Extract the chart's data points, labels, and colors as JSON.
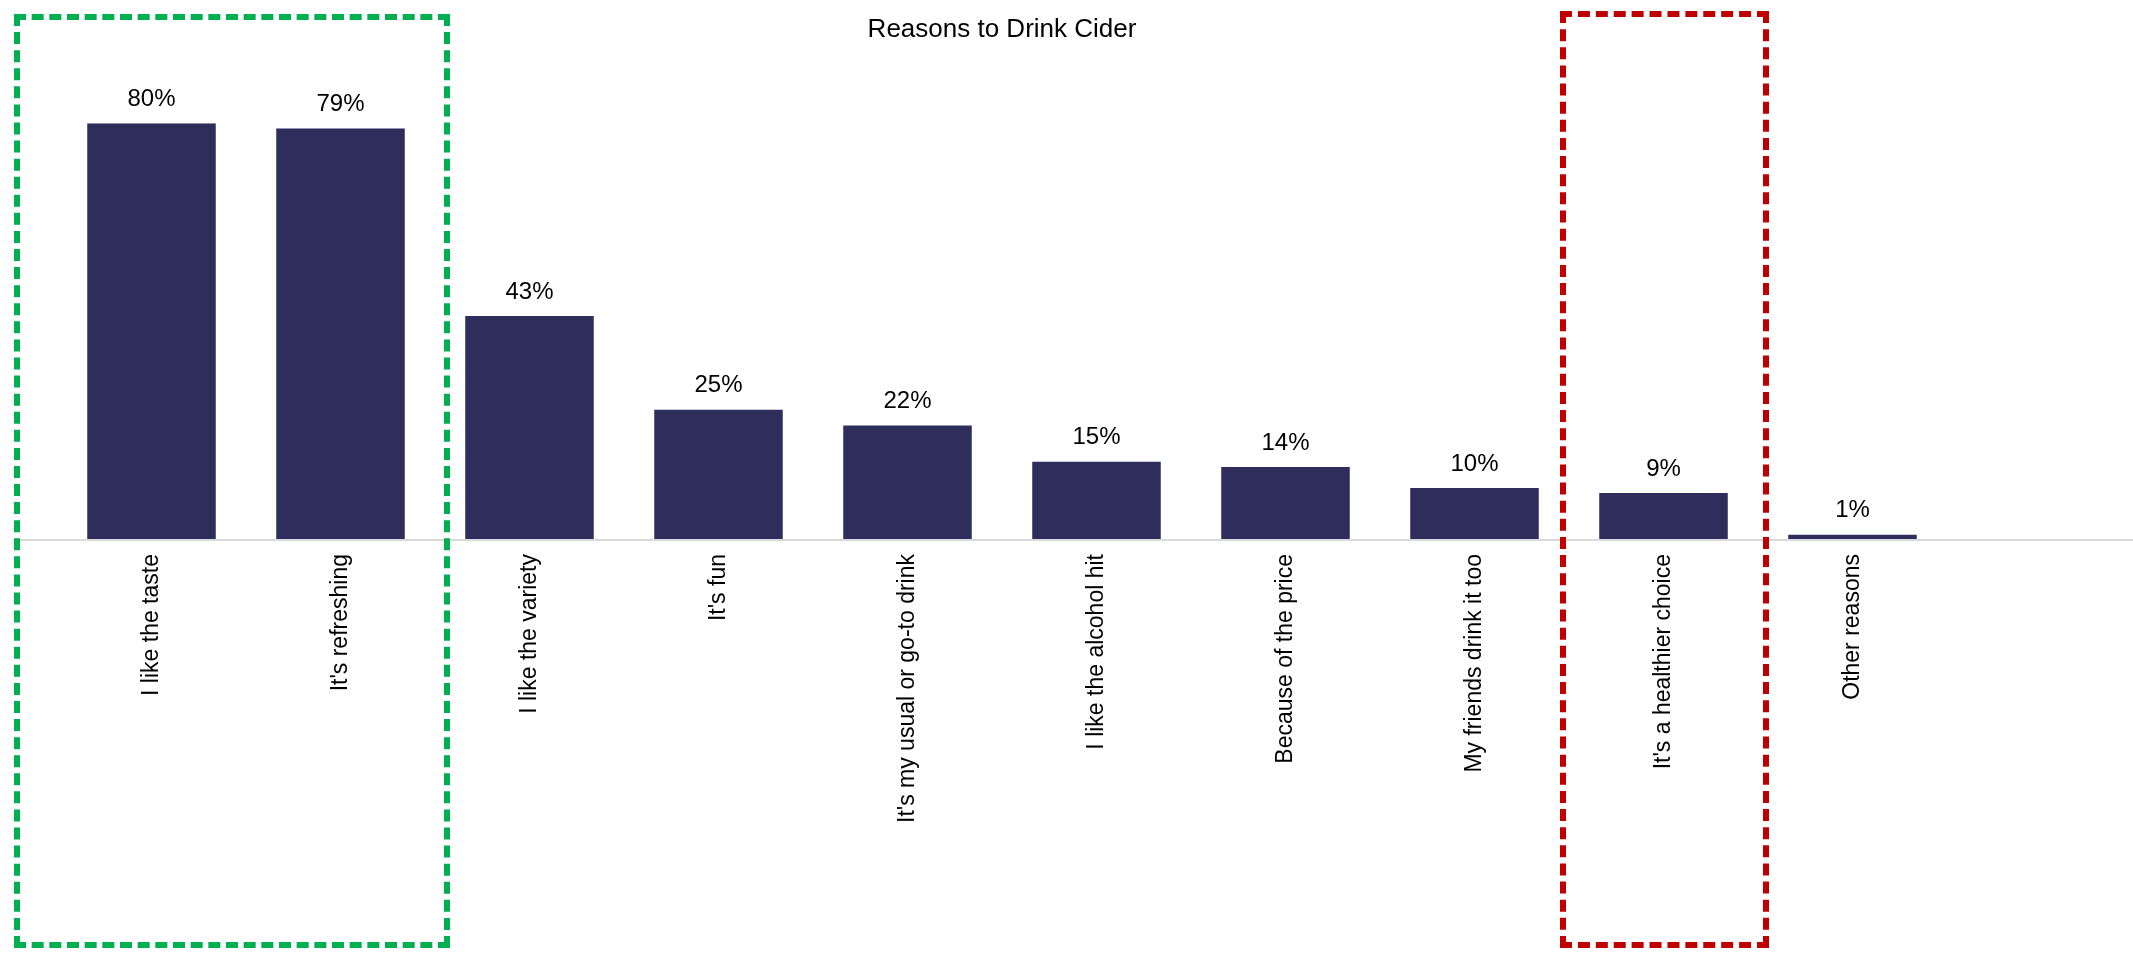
{
  "chart_data": {
    "type": "bar",
    "title": "Reasons to Drink Cider",
    "categories": [
      "I like the taste",
      "It's refreshing",
      "I like the variety",
      "It's fun",
      "It's my usual or go-to drink",
      "I like the alcohol hit",
      "Because of the price",
      "My friends drink it too",
      "It's a healthier choice",
      "Other reasons"
    ],
    "values": [
      80,
      79,
      43,
      25,
      22,
      15,
      14,
      10,
      9,
      1
    ],
    "color": "#2e2d5c",
    "value_labels": [
      "80%",
      "79%",
      "43%",
      "25%",
      "22%",
      "15%",
      "14%",
      "10%",
      "9%",
      "1%"
    ],
    "tick_labels": "x",
    "grid": false,
    "legend": false
  }
}
